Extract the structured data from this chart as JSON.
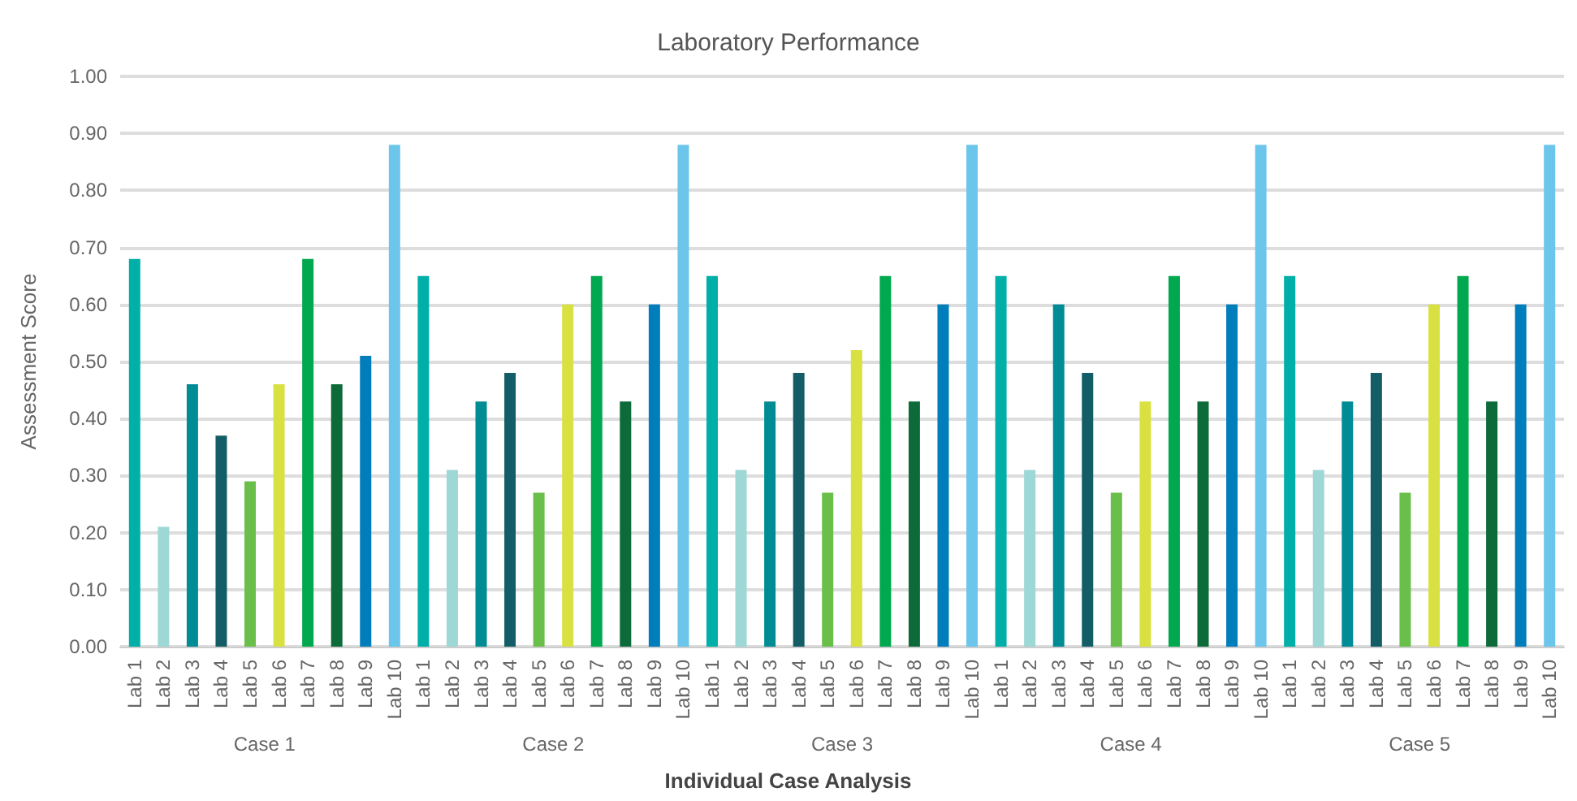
{
  "chart_data": {
    "type": "bar",
    "title": "Laboratory Performance",
    "xlabel": "Individual Case Analysis",
    "ylabel": "Assessment Score",
    "categories": [
      "Lab 1",
      "Lab 2",
      "Lab 3",
      "Lab 4",
      "Lab 5",
      "Lab 6",
      "Lab 7",
      "Lab 8",
      "Lab 9",
      "Lab 10",
      "Lab 1",
      "Lab 2",
      "Lab 3",
      "Lab 4",
      "Lab 5",
      "Lab 6",
      "Lab 7",
      "Lab 8",
      "Lab 9",
      "Lab 10",
      "Lab 1",
      "Lab 2",
      "Lab 3",
      "Lab 4",
      "Lab 5",
      "Lab 6",
      "Lab 7",
      "Lab 8",
      "Lab 9",
      "Lab 10",
      "Lab 1",
      "Lab 2",
      "Lab 3",
      "Lab 4",
      "Lab 5",
      "Lab 6",
      "Lab 7",
      "Lab 8",
      "Lab 9",
      "Lab 10",
      "Lab 1",
      "Lab 2",
      "Lab 3",
      "Lab 4",
      "Lab 5",
      "Lab 6",
      "Lab 7",
      "Lab 8",
      "Lab 9",
      "Lab 10"
    ],
    "values": [
      0.68,
      0.21,
      0.46,
      0.37,
      0.29,
      0.46,
      0.68,
      0.46,
      0.51,
      0.88,
      0.65,
      0.31,
      0.43,
      0.48,
      0.27,
      0.6,
      0.65,
      0.43,
      0.6,
      0.88,
      0.65,
      0.31,
      0.43,
      0.48,
      0.27,
      0.52,
      0.65,
      0.43,
      0.6,
      0.88,
      0.65,
      0.31,
      0.6,
      0.48,
      0.27,
      0.43,
      0.65,
      0.43,
      0.6,
      0.88,
      0.65,
      0.31,
      0.43,
      0.48,
      0.27,
      0.6,
      0.65,
      0.43,
      0.6,
      0.88
    ],
    "colors": [
      "#00b0a8",
      "#9dd8d6",
      "#008c95",
      "#135e66",
      "#6abf4b",
      "#d9e142",
      "#00a94f",
      "#0c6b38",
      "#007dbb",
      "#6cc5ea",
      "#00b0a8",
      "#9dd8d6",
      "#008c95",
      "#135e66",
      "#6abf4b",
      "#d9e142",
      "#00a94f",
      "#0c6b38",
      "#007dbb",
      "#6cc5ea",
      "#00b0a8",
      "#9dd8d6",
      "#008c95",
      "#135e66",
      "#6abf4b",
      "#d9e142",
      "#00a94f",
      "#0c6b38",
      "#007dbb",
      "#6cc5ea",
      "#00b0a8",
      "#9dd8d6",
      "#008c95",
      "#135e66",
      "#6abf4b",
      "#d9e142",
      "#00a94f",
      "#0c6b38",
      "#007dbb",
      "#6cc5ea",
      "#00b0a8",
      "#9dd8d6",
      "#008c95",
      "#135e66",
      "#6abf4b",
      "#d9e142",
      "#00a94f",
      "#0c6b38",
      "#007dbb",
      "#6cc5ea"
    ],
    "annotations": [
      "Case 1",
      "Case 2",
      "Case 3",
      "Case 4",
      "Case 5"
    ],
    "ylim": [
      0,
      1
    ],
    "yticks": [
      {
        "value": 0,
        "label": "0.00"
      },
      {
        "value": 0.1,
        "label": "0.10"
      },
      {
        "value": 0.2,
        "label": "0.20"
      },
      {
        "value": 0.3,
        "label": "0.30"
      },
      {
        "value": 0.4,
        "label": "0.40"
      },
      {
        "value": 0.5,
        "label": "0.50"
      },
      {
        "value": 0.6,
        "label": "0.60"
      },
      {
        "value": 0.7,
        "label": "0.70"
      },
      {
        "value": 0.8,
        "label": "0.80"
      },
      {
        "value": 0.9,
        "label": "0.90"
      },
      {
        "value": 1,
        "label": "1.00"
      }
    ],
    "grid": "y"
  }
}
